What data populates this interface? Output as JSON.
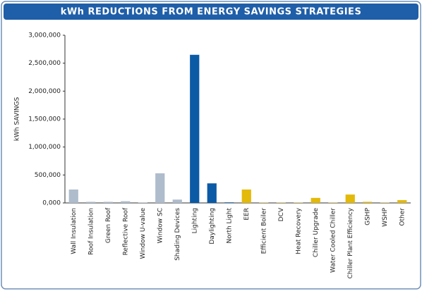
{
  "chart_data": {
    "type": "bar",
    "title": "kWh REDUCTIONS FROM ENERGY SAVINGS STRATEGIES",
    "y_label": "kWh SAVINGS",
    "categories": [
      "Wall Insulation",
      "Roof Insulation",
      "Green Roof",
      "Reflective Roof",
      "Window U-value",
      "Window SC",
      "Shading Devices",
      "Lighting",
      "Daylighting",
      "North Light",
      "EER",
      "Efficient Boiler",
      "DCV",
      "Heat Recovery",
      "Chiller Upgrade",
      "Water Cooled Chiller",
      "Chiller Plant Efficiency",
      "GSHP",
      "WSHP",
      "Other"
    ],
    "values": [
      240000,
      20000,
      20000,
      30000,
      5000,
      530000,
      60000,
      2650000,
      350000,
      10000,
      240000,
      5000,
      5000,
      5000,
      90000,
      5000,
      150000,
      20000,
      5000,
      50000
    ],
    "colors": [
      "#aebccc",
      "#aebccc",
      "#aebccc",
      "#aebccc",
      "#aebccc",
      "#aebccc",
      "#aebccc",
      "#0b5aa6",
      "#0b5aa6",
      "#0b5aa6",
      "#e3b90a",
      "#e3b90a",
      "#e3b90a",
      "#e3b90a",
      "#e3b90a",
      "#e3b90a",
      "#e3b90a",
      "#e3b90a",
      "#e3b90a",
      "#e3b90a"
    ],
    "ylim": [
      0,
      3000000
    ],
    "yticks": [
      {
        "value": 0,
        "label": "0,000"
      },
      {
        "value": 500000,
        "label": "500,000"
      },
      {
        "value": 1000000,
        "label": "1,000,000"
      },
      {
        "value": 1500000,
        "label": "1,500,000"
      },
      {
        "value": 2000000,
        "label": "2,000,000"
      },
      {
        "value": 2500000,
        "label": "2,500,000"
      },
      {
        "value": 3000000,
        "label": "3,000,000"
      }
    ],
    "grid": false
  }
}
